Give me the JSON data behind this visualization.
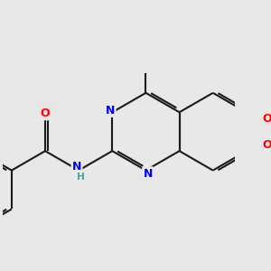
{
  "bg_color": "#e8e8e8",
  "bond_color": "#1a1a1a",
  "nitrogen_color": "#0000ff",
  "oxygen_color": "#ff0000",
  "lw": 1.5,
  "dbo": 0.06,
  "fs": 9.0,
  "fig_w": 3.0,
  "fig_h": 3.0,
  "dpi": 100,
  "xlim": [
    -3.8,
    2.2
  ],
  "ylim": [
    -2.0,
    2.2
  ]
}
